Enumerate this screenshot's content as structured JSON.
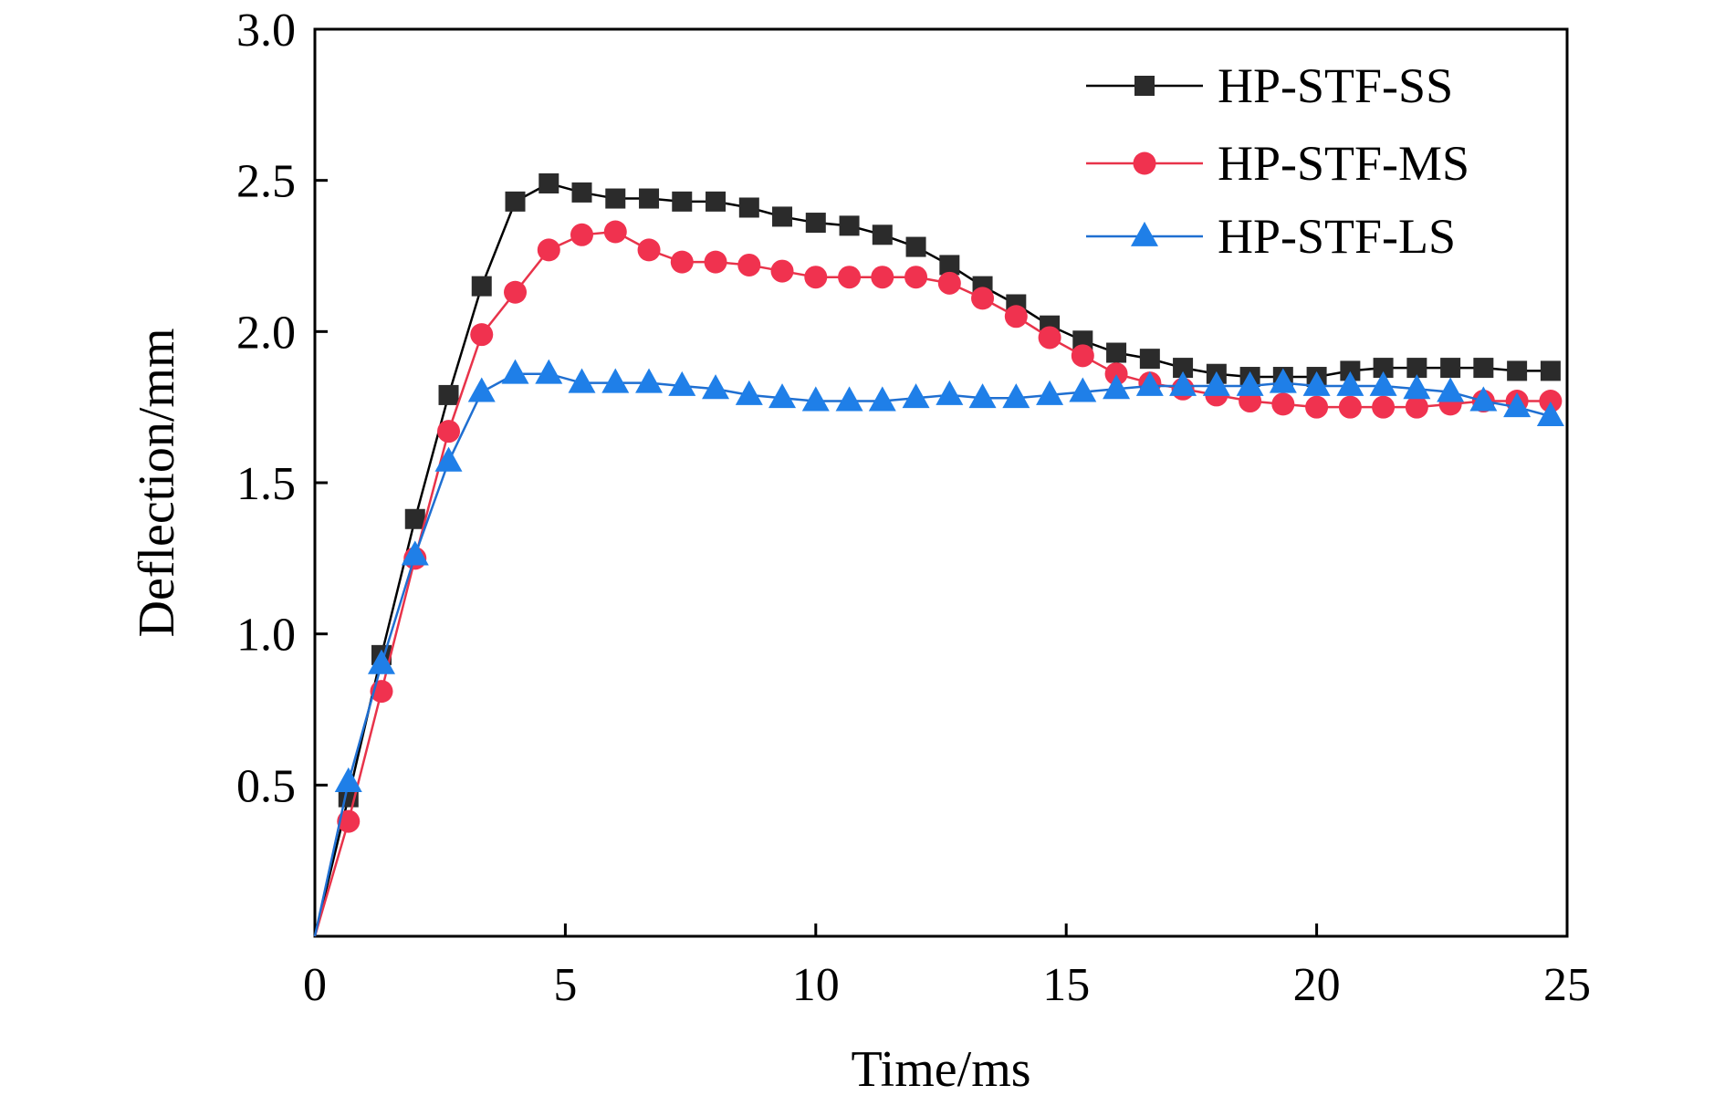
{
  "chart_data": {
    "type": "line",
    "title": "",
    "xlabel": "Time/ms",
    "ylabel": "Deflection/mm",
    "xlim": [
      0,
      25
    ],
    "ylim": [
      0,
      3.0
    ],
    "xticks": [
      0,
      5,
      10,
      15,
      20,
      25
    ],
    "xtick_labels": [
      "0",
      "5",
      "10",
      "15",
      "20",
      "25"
    ],
    "yticks": [
      0.5,
      1.0,
      1.5,
      2.0,
      2.5,
      3.0
    ],
    "ytick_labels": [
      "0.5",
      "1.0",
      "1.5",
      "2.0",
      "2.5",
      "3.0"
    ],
    "grid": false,
    "legend_position": "top-right",
    "x": [
      0,
      0.67,
      1.33,
      2.0,
      2.67,
      3.33,
      4.0,
      4.67,
      5.33,
      6.0,
      6.67,
      7.33,
      8.0,
      8.67,
      9.33,
      10.0,
      10.67,
      11.33,
      12.0,
      12.67,
      13.33,
      14.0,
      14.67,
      15.33,
      16.0,
      16.67,
      17.33,
      18.0,
      18.67,
      19.33,
      20.0,
      20.67,
      21.33,
      22.0,
      22.67,
      23.33,
      24.0,
      24.67
    ],
    "series": [
      {
        "name": "HP-STF-SS",
        "color": "#000000",
        "marker_color": "#2b2b2b",
        "marker": "square",
        "values": [
          0,
          0.46,
          0.93,
          1.38,
          1.79,
          2.15,
          2.43,
          2.49,
          2.46,
          2.44,
          2.44,
          2.43,
          2.43,
          2.41,
          2.38,
          2.36,
          2.35,
          2.32,
          2.28,
          2.22,
          2.15,
          2.09,
          2.02,
          1.97,
          1.93,
          1.91,
          1.88,
          1.86,
          1.85,
          1.85,
          1.85,
          1.87,
          1.88,
          1.88,
          1.88,
          1.88,
          1.87,
          1.87
        ]
      },
      {
        "name": "HP-STF-MS",
        "color": "#e8334a",
        "marker_color": "#f0324f",
        "marker": "circle",
        "values": [
          0,
          0.38,
          0.81,
          1.25,
          1.67,
          1.99,
          2.13,
          2.27,
          2.32,
          2.33,
          2.27,
          2.23,
          2.23,
          2.22,
          2.2,
          2.18,
          2.18,
          2.18,
          2.18,
          2.16,
          2.11,
          2.05,
          1.98,
          1.92,
          1.86,
          1.83,
          1.81,
          1.79,
          1.77,
          1.76,
          1.75,
          1.75,
          1.75,
          1.75,
          1.76,
          1.77,
          1.77,
          1.77
        ]
      },
      {
        "name": "HP-STF-LS",
        "color": "#1f6fd1",
        "marker_color": "#1f7fe8",
        "marker": "triangle",
        "values": [
          0,
          0.51,
          0.9,
          1.26,
          1.57,
          1.8,
          1.86,
          1.86,
          1.83,
          1.83,
          1.83,
          1.82,
          1.81,
          1.79,
          1.78,
          1.77,
          1.77,
          1.77,
          1.78,
          1.79,
          1.78,
          1.78,
          1.79,
          1.8,
          1.81,
          1.82,
          1.82,
          1.82,
          1.82,
          1.83,
          1.82,
          1.82,
          1.82,
          1.81,
          1.8,
          1.77,
          1.75,
          1.72
        ]
      }
    ]
  }
}
